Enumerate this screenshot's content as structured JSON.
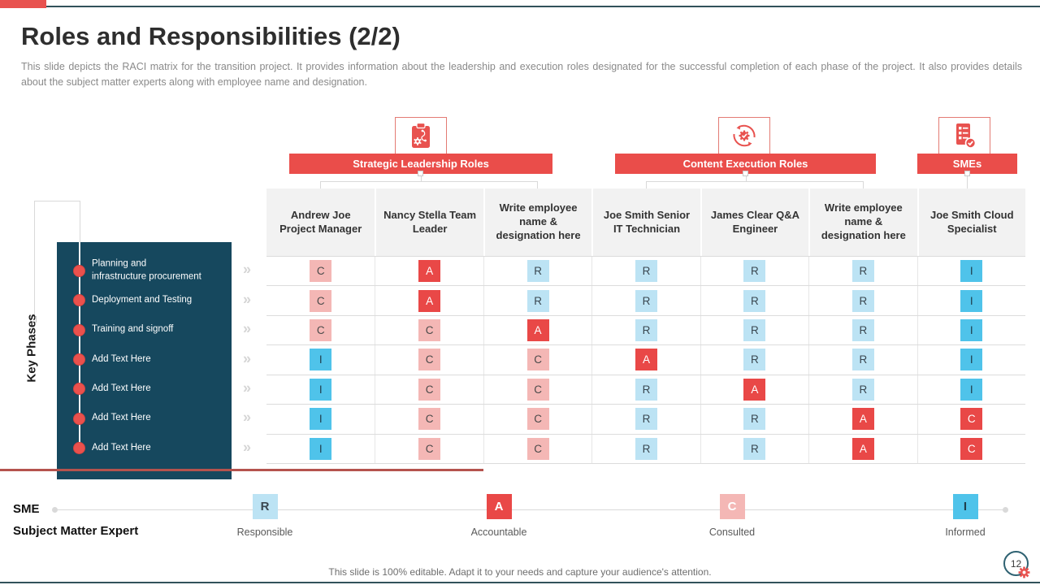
{
  "slide": {
    "title": "Roles and Responsibilities (2/2)",
    "subtitle": "This slide depicts the RACI matrix for the transition project. It provides information about the leadership and execution roles designated for the successful completion of each phase of the project. It also provides details about the subject matter experts along with employee name and designation.",
    "footer": "This slide is 100% editable. Adapt it to your needs and capture your audience's attention.",
    "page_number": "12"
  },
  "groups": [
    {
      "label": "Strategic Leadership Roles",
      "icon": "clipboard-gear-icon"
    },
    {
      "label": "Content Execution Roles",
      "icon": "gear-cycle-icon"
    },
    {
      "label": "SMEs",
      "icon": "checklist-check-icon"
    }
  ],
  "key_phases": {
    "axis_label": "Key Phases",
    "items": [
      {
        "label": "Planning and\ninfrastructure procurement",
        "placeholder": false
      },
      {
        "label": "Deployment and Testing",
        "placeholder": false
      },
      {
        "label": "Training and signoff",
        "placeholder": false
      },
      {
        "label": "Add Text Here",
        "placeholder": true
      },
      {
        "label": "Add Text Here",
        "placeholder": true
      },
      {
        "label": "Add Text Here",
        "placeholder": true
      },
      {
        "label": "Add Text Here",
        "placeholder": true
      }
    ]
  },
  "matrix": {
    "columns": [
      {
        "label": "Andrew Joe Project Manager",
        "placeholder": false
      },
      {
        "label": "Nancy Stella Team Leader",
        "placeholder": false
      },
      {
        "label": "Write employee name & designation here",
        "placeholder": true
      },
      {
        "label": "Joe Smith Senior IT Technician",
        "placeholder": false
      },
      {
        "label": "James Clear Q&A Engineer",
        "placeholder": false
      },
      {
        "label": "Write employee name & designation here",
        "placeholder": true
      },
      {
        "label": "Joe Smith Cloud Specialist",
        "placeholder": false
      }
    ],
    "rows": [
      [
        "C",
        "A",
        "R",
        "R",
        "R",
        "R",
        "I"
      ],
      [
        "C",
        "A",
        "R",
        "R",
        "R",
        "R",
        "I"
      ],
      [
        "C",
        "C",
        "A",
        "R",
        "R",
        "R",
        "I"
      ],
      [
        "I",
        "C",
        "C",
        "A",
        "R",
        "R",
        "I"
      ],
      [
        "I",
        "C",
        "C",
        "R",
        "A",
        "R",
        "I"
      ],
      [
        "I",
        "C",
        "C",
        "R",
        "R",
        "A",
        "C*"
      ],
      [
        "I",
        "C",
        "C",
        "R",
        "R",
        "A",
        "C*"
      ]
    ]
  },
  "legend": {
    "abbr": "SME",
    "full": "Subject Matter Expert",
    "items": [
      {
        "letter": "R",
        "label": "Responsible",
        "variant": "r"
      },
      {
        "letter": "A",
        "label": "Accountable",
        "variant": "a"
      },
      {
        "letter": "C",
        "label": "Consulted",
        "variant": "c"
      },
      {
        "letter": "I",
        "label": "Informed",
        "variant": "i"
      }
    ]
  },
  "colors": {
    "accent_red": "#e8524f",
    "chip_red": "#e94847",
    "chip_pink": "#f4b7b5",
    "chip_lightblue": "#bce3f4",
    "chip_blue": "#4fc3ea",
    "sidebar_teal": "#16485e",
    "rule_teal": "#31525b",
    "divider_red": "#b5534e"
  }
}
